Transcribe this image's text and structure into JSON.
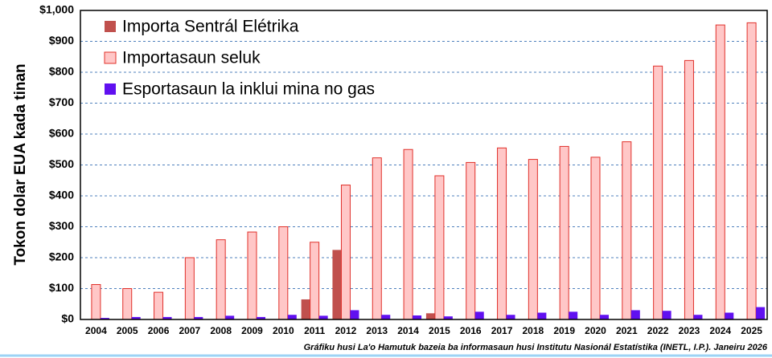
{
  "chart_data": {
    "type": "bar",
    "ylabel": "Tokon dolar EUA kada tinan",
    "source": "Gráfiku husi La'o Hamutuk bazeia ba informasaun  husi Institutu Nasionál Estatístika (INETL, I.P.). Janeiru 2026",
    "categories": [
      "2004",
      "2005",
      "2006",
      "2007",
      "2008",
      "2009",
      "2010",
      "2011",
      "2012",
      "2013",
      "2014",
      "2015",
      "2016",
      "2017",
      "2018",
      "2019",
      "2020",
      "2021",
      "2022",
      "2023",
      "2024",
      "2025"
    ],
    "series": [
      {
        "name": "Importa Sentrál Elétrika",
        "color": "#c0504d",
        "values": [
          null,
          null,
          null,
          null,
          null,
          null,
          null,
          65,
          225,
          null,
          null,
          20,
          null,
          null,
          null,
          null,
          null,
          null,
          null,
          null,
          null,
          null
        ]
      },
      {
        "name": "Importasaun seluk",
        "color": "#ffc7c7",
        "edge": "#e0302a",
        "values": [
          113,
          100,
          88,
          200,
          258,
          283,
          300,
          250,
          435,
          523,
          550,
          465,
          508,
          555,
          518,
          560,
          525,
          575,
          820,
          838,
          953,
          960
        ]
      },
      {
        "name": "Esportasaun la inklui mina no gas",
        "color": "#6010f0",
        "values": [
          5,
          8,
          8,
          8,
          12,
          8,
          15,
          12,
          30,
          15,
          13,
          10,
          25,
          15,
          22,
          25,
          15,
          30,
          28,
          15,
          22,
          40
        ]
      }
    ],
    "ylim": [
      0,
      1000
    ],
    "yticks": [
      {
        "value": 0,
        "label": "$0"
      },
      {
        "value": 100,
        "label": "$100"
      },
      {
        "value": 200,
        "label": "$200"
      },
      {
        "value": 300,
        "label": "$300"
      },
      {
        "value": 400,
        "label": "$400"
      },
      {
        "value": 500,
        "label": "$500"
      },
      {
        "value": 600,
        "label": "$600"
      },
      {
        "value": 700,
        "label": "$700"
      },
      {
        "value": 800,
        "label": "$800"
      },
      {
        "value": 900,
        "label": "$900"
      },
      {
        "value": 1000,
        "label": "$1,000"
      }
    ],
    "grid": true
  }
}
